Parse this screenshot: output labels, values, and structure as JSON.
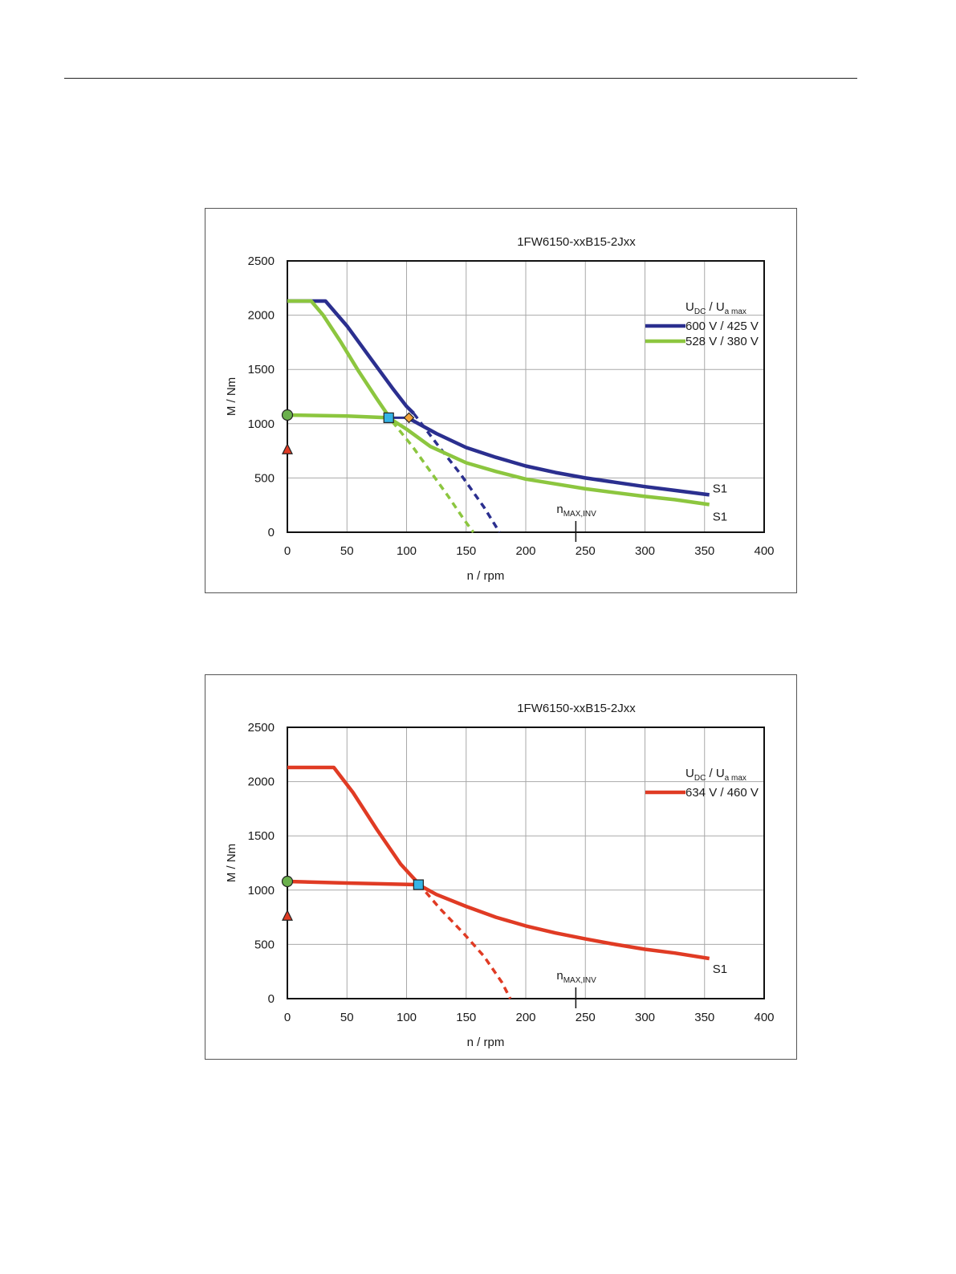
{
  "chart_data": [
    {
      "type": "line",
      "title": "1FW6150-xxB15-2Jxx",
      "xlabel": "n / rpm",
      "ylabel": "M / Nm",
      "xlim": [
        0,
        400
      ],
      "ylim": [
        0,
        2500
      ],
      "xticks": [
        "0",
        "50",
        "100",
        "150",
        "200",
        "250",
        "300",
        "350",
        "400"
      ],
      "yticks": [
        "0",
        "500",
        "1000",
        "1500",
        "2000",
        "2500"
      ],
      "grid": true,
      "legend_position": "top-right",
      "legend_header": {
        "u_dc": "U",
        "u_dc_sub": "DC",
        "sep": "/",
        "u_a": "U",
        "u_a_sub": "a max"
      },
      "n_max_inv": {
        "x": 242,
        "label": "n",
        "label_sub": "MAX,INV"
      },
      "series": [
        {
          "name": "600 V / 425 V",
          "color": "#2b2f8f",
          "end_label": "S1",
          "mmax": [
            [
              0,
              2130
            ],
            [
              32,
              2130
            ],
            [
              50,
              1900
            ],
            [
              70,
              1600
            ],
            [
              88,
              1330
            ],
            [
              100,
              1160
            ],
            [
              106,
              1095
            ]
          ],
          "mmax_dashed": [
            [
              106,
              1095
            ],
            [
              125,
              820
            ],
            [
              145,
              540
            ],
            [
              165,
              230
            ],
            [
              178,
              0
            ]
          ],
          "s1": [
            [
              101,
              1055
            ],
            [
              110,
              1000
            ],
            [
              125,
              910
            ],
            [
              150,
              780
            ],
            [
              175,
              690
            ],
            [
              200,
              610
            ],
            [
              225,
              550
            ],
            [
              250,
              500
            ],
            [
              275,
              460
            ],
            [
              300,
              420
            ],
            [
              325,
              385
            ],
            [
              354,
              345
            ]
          ]
        },
        {
          "name": "528 V / 380 V",
          "color": "#8cc63f",
          "end_label": "S1",
          "mmax": [
            [
              0,
              2130
            ],
            [
              20,
              2130
            ],
            [
              30,
              2000
            ],
            [
              45,
              1750
            ],
            [
              60,
              1480
            ],
            [
              75,
              1230
            ],
            [
              88,
              1020
            ]
          ],
          "mmax_dashed": [
            [
              88,
              1020
            ],
            [
              105,
              790
            ],
            [
              120,
              560
            ],
            [
              135,
              330
            ],
            [
              148,
              120
            ],
            [
              156,
              0
            ]
          ],
          "s1": [
            [
              0,
              1080
            ],
            [
              50,
              1070
            ],
            [
              85,
              1055
            ],
            [
              100,
              950
            ],
            [
              120,
              790
            ],
            [
              150,
              640
            ],
            [
              175,
              560
            ],
            [
              200,
              490
            ],
            [
              225,
              445
            ],
            [
              250,
              400
            ],
            [
              275,
              365
            ],
            [
              300,
              330
            ],
            [
              325,
              300
            ],
            [
              354,
              255
            ]
          ]
        }
      ],
      "markers": [
        {
          "shape": "circle",
          "x": 0,
          "y": 1080,
          "color": "#6ab04c"
        },
        {
          "shape": "triangle",
          "x": 0,
          "y": 760,
          "color": "#e03b24"
        },
        {
          "shape": "square",
          "x": 85,
          "y": 1055,
          "color": "#35b4e6"
        },
        {
          "shape": "diamond",
          "x": 102,
          "y": 1055,
          "color": "#f2a33a"
        }
      ],
      "connector": [
        [
          85,
          1055
        ],
        [
          102,
          1055
        ]
      ]
    },
    {
      "type": "line",
      "title": "1FW6150-xxB15-2Jxx",
      "xlabel": "n / rpm",
      "ylabel": "M / Nm",
      "xlim": [
        0,
        400
      ],
      "ylim": [
        0,
        2500
      ],
      "xticks": [
        "0",
        "50",
        "100",
        "150",
        "200",
        "250",
        "300",
        "350",
        "400"
      ],
      "yticks": [
        "0",
        "500",
        "1000",
        "1500",
        "2000",
        "2500"
      ],
      "grid": true,
      "legend_position": "top-right",
      "legend_header": {
        "u_dc": "U",
        "u_dc_sub": "DC",
        "sep": "/",
        "u_a": "U",
        "u_a_sub": "a max"
      },
      "n_max_inv": {
        "x": 242,
        "label": "n",
        "label_sub": "MAX,INV"
      },
      "series": [
        {
          "name": "634 V / 460 V",
          "color": "#e03b24",
          "end_label": "S1",
          "mmax": [
            [
              0,
              2130
            ],
            [
              39,
              2130
            ],
            [
              55,
              1900
            ],
            [
              75,
              1560
            ],
            [
              95,
              1240
            ],
            [
              110,
              1060
            ]
          ],
          "mmax_dashed": [
            [
              110,
              1060
            ],
            [
              128,
              830
            ],
            [
              148,
              600
            ],
            [
              165,
              390
            ],
            [
              180,
              150
            ],
            [
              187,
              0
            ]
          ],
          "s1": [
            [
              0,
              1080
            ],
            [
              50,
              1065
            ],
            [
              110,
              1050
            ],
            [
              125,
              960
            ],
            [
              150,
              850
            ],
            [
              175,
              750
            ],
            [
              200,
              670
            ],
            [
              225,
              605
            ],
            [
              250,
              550
            ],
            [
              275,
              500
            ],
            [
              300,
              455
            ],
            [
              325,
              420
            ],
            [
              354,
              370
            ]
          ]
        }
      ],
      "markers": [
        {
          "shape": "circle",
          "x": 0,
          "y": 1080,
          "color": "#6ab04c"
        },
        {
          "shape": "triangle",
          "x": 0,
          "y": 760,
          "color": "#e03b24"
        },
        {
          "shape": "square",
          "x": 110,
          "y": 1050,
          "color": "#35b4e6"
        }
      ],
      "connector": []
    }
  ]
}
